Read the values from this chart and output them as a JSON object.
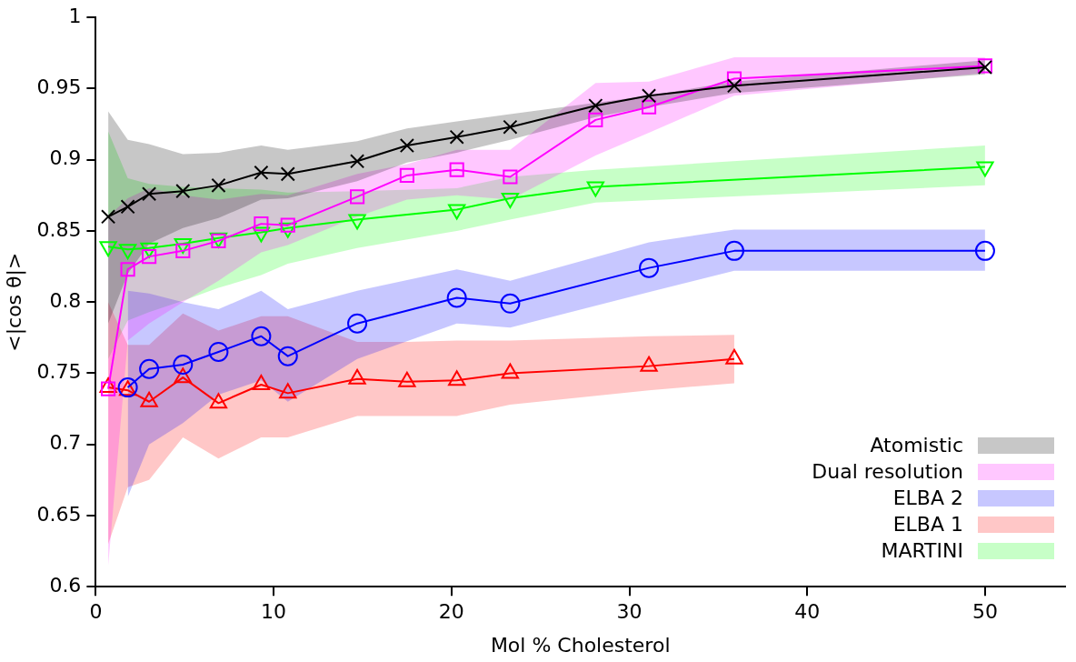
{
  "chart_data": {
    "type": "line",
    "xlabel": "Mol % Cholesterol",
    "ylabel": "<|cos θ|>",
    "xlim": [
      0,
      54.5
    ],
    "xticks": [
      0,
      10,
      20,
      30,
      40,
      50
    ],
    "ylim": [
      0.6,
      1
    ],
    "yticks": [
      0.6,
      0.65,
      0.7,
      0.75,
      0.8,
      0.85,
      0.9,
      0.95,
      1
    ],
    "grid": false,
    "legend": "bottom right",
    "line_style": "solid",
    "series": [
      {
        "name": "Atomistic",
        "color": "#000000",
        "marker": "cross",
        "x": [
          0.7,
          1.8,
          3.0,
          4.9,
          6.9,
          9.3,
          10.8,
          14.7,
          17.5,
          20.3,
          23.3,
          28.1,
          31.1,
          35.9,
          50
        ],
        "values": [
          0.86,
          0.867,
          0.876,
          0.878,
          0.882,
          0.891,
          0.89,
          0.899,
          0.91,
          0.916,
          0.923,
          0.938,
          0.945,
          0.952,
          0.965
        ],
        "lower": [
          0.785,
          0.82,
          0.841,
          0.852,
          0.859,
          0.872,
          0.873,
          0.885,
          0.898,
          0.905,
          0.914,
          0.93,
          0.937,
          0.947,
          0.96
        ],
        "upper": [
          0.934,
          0.914,
          0.911,
          0.904,
          0.905,
          0.91,
          0.907,
          0.913,
          0.922,
          0.927,
          0.932,
          0.94,
          0.945,
          0.955,
          0.97
        ]
      },
      {
        "name": "Dual resolution",
        "color": "#ff00ff",
        "marker": "square",
        "x": [
          0.7,
          1.8,
          3.0,
          4.9,
          6.9,
          9.3,
          10.8,
          14.7,
          17.5,
          20.3,
          23.3,
          28.1,
          31.1,
          35.9,
          50
        ],
        "values": [
          0.739,
          0.823,
          0.832,
          0.836,
          0.843,
          0.855,
          0.854,
          0.874,
          0.889,
          0.893,
          0.888,
          0.928,
          0.937,
          0.957,
          0.966
        ],
        "lower": [
          0.615,
          0.773,
          0.785,
          0.8,
          0.815,
          0.835,
          0.84,
          0.86,
          0.872,
          0.875,
          0.872,
          0.903,
          0.919,
          0.945,
          0.961
        ],
        "upper": [
          0.86,
          0.873,
          0.88,
          0.875,
          0.872,
          0.876,
          0.875,
          0.89,
          0.897,
          0.907,
          0.907,
          0.954,
          0.955,
          0.972,
          0.972
        ]
      },
      {
        "name": "ELBA 2",
        "color": "#0000ff",
        "marker": "circle",
        "x": [
          1.8,
          3.0,
          4.9,
          6.9,
          9.3,
          10.8,
          14.7,
          20.3,
          23.3,
          31.1,
          35.9,
          50
        ],
        "values": [
          0.74,
          0.753,
          0.756,
          0.765,
          0.776,
          0.762,
          0.785,
          0.803,
          0.799,
          0.824,
          0.836,
          0.836
        ],
        "lower": [
          0.663,
          0.7,
          0.715,
          0.735,
          0.745,
          0.73,
          0.76,
          0.785,
          0.782,
          0.807,
          0.822,
          0.822
        ],
        "upper": [
          0.808,
          0.806,
          0.8,
          0.795,
          0.808,
          0.795,
          0.808,
          0.823,
          0.815,
          0.842,
          0.851,
          0.851
        ]
      },
      {
        "name": "ELBA 1",
        "color": "#ff0000",
        "marker": "triangle",
        "x": [
          0.7,
          1.8,
          3.0,
          4.9,
          6.9,
          9.3,
          10.8,
          14.7,
          17.5,
          20.3,
          23.3,
          31.1,
          35.9
        ],
        "values": [
          0.74,
          0.738,
          0.73,
          0.747,
          0.729,
          0.742,
          0.736,
          0.746,
          0.744,
          0.745,
          0.75,
          0.755,
          0.76
        ],
        "lower": [
          0.63,
          0.67,
          0.675,
          0.705,
          0.69,
          0.705,
          0.705,
          0.72,
          0.72,
          0.72,
          0.728,
          0.738,
          0.743
        ],
        "upper": [
          0.8,
          0.77,
          0.77,
          0.792,
          0.78,
          0.79,
          0.79,
          0.772,
          0.772,
          0.773,
          0.773,
          0.776,
          0.777
        ]
      },
      {
        "name": "MARTINI",
        "color": "#00ff00",
        "marker": "triangle-down",
        "x": [
          0.7,
          1.8,
          3.0,
          4.9,
          6.9,
          9.3,
          10.8,
          14.7,
          20.3,
          23.3,
          28.1,
          50
        ],
        "values": [
          0.839,
          0.837,
          0.838,
          0.841,
          0.845,
          0.849,
          0.852,
          0.858,
          0.865,
          0.873,
          0.881,
          0.895
        ],
        "lower": [
          0.76,
          0.787,
          0.793,
          0.801,
          0.81,
          0.819,
          0.827,
          0.838,
          0.85,
          0.858,
          0.87,
          0.882
        ],
        "upper": [
          0.92,
          0.887,
          0.883,
          0.881,
          0.88,
          0.879,
          0.877,
          0.878,
          0.88,
          0.888,
          0.893,
          0.91
        ]
      }
    ]
  }
}
